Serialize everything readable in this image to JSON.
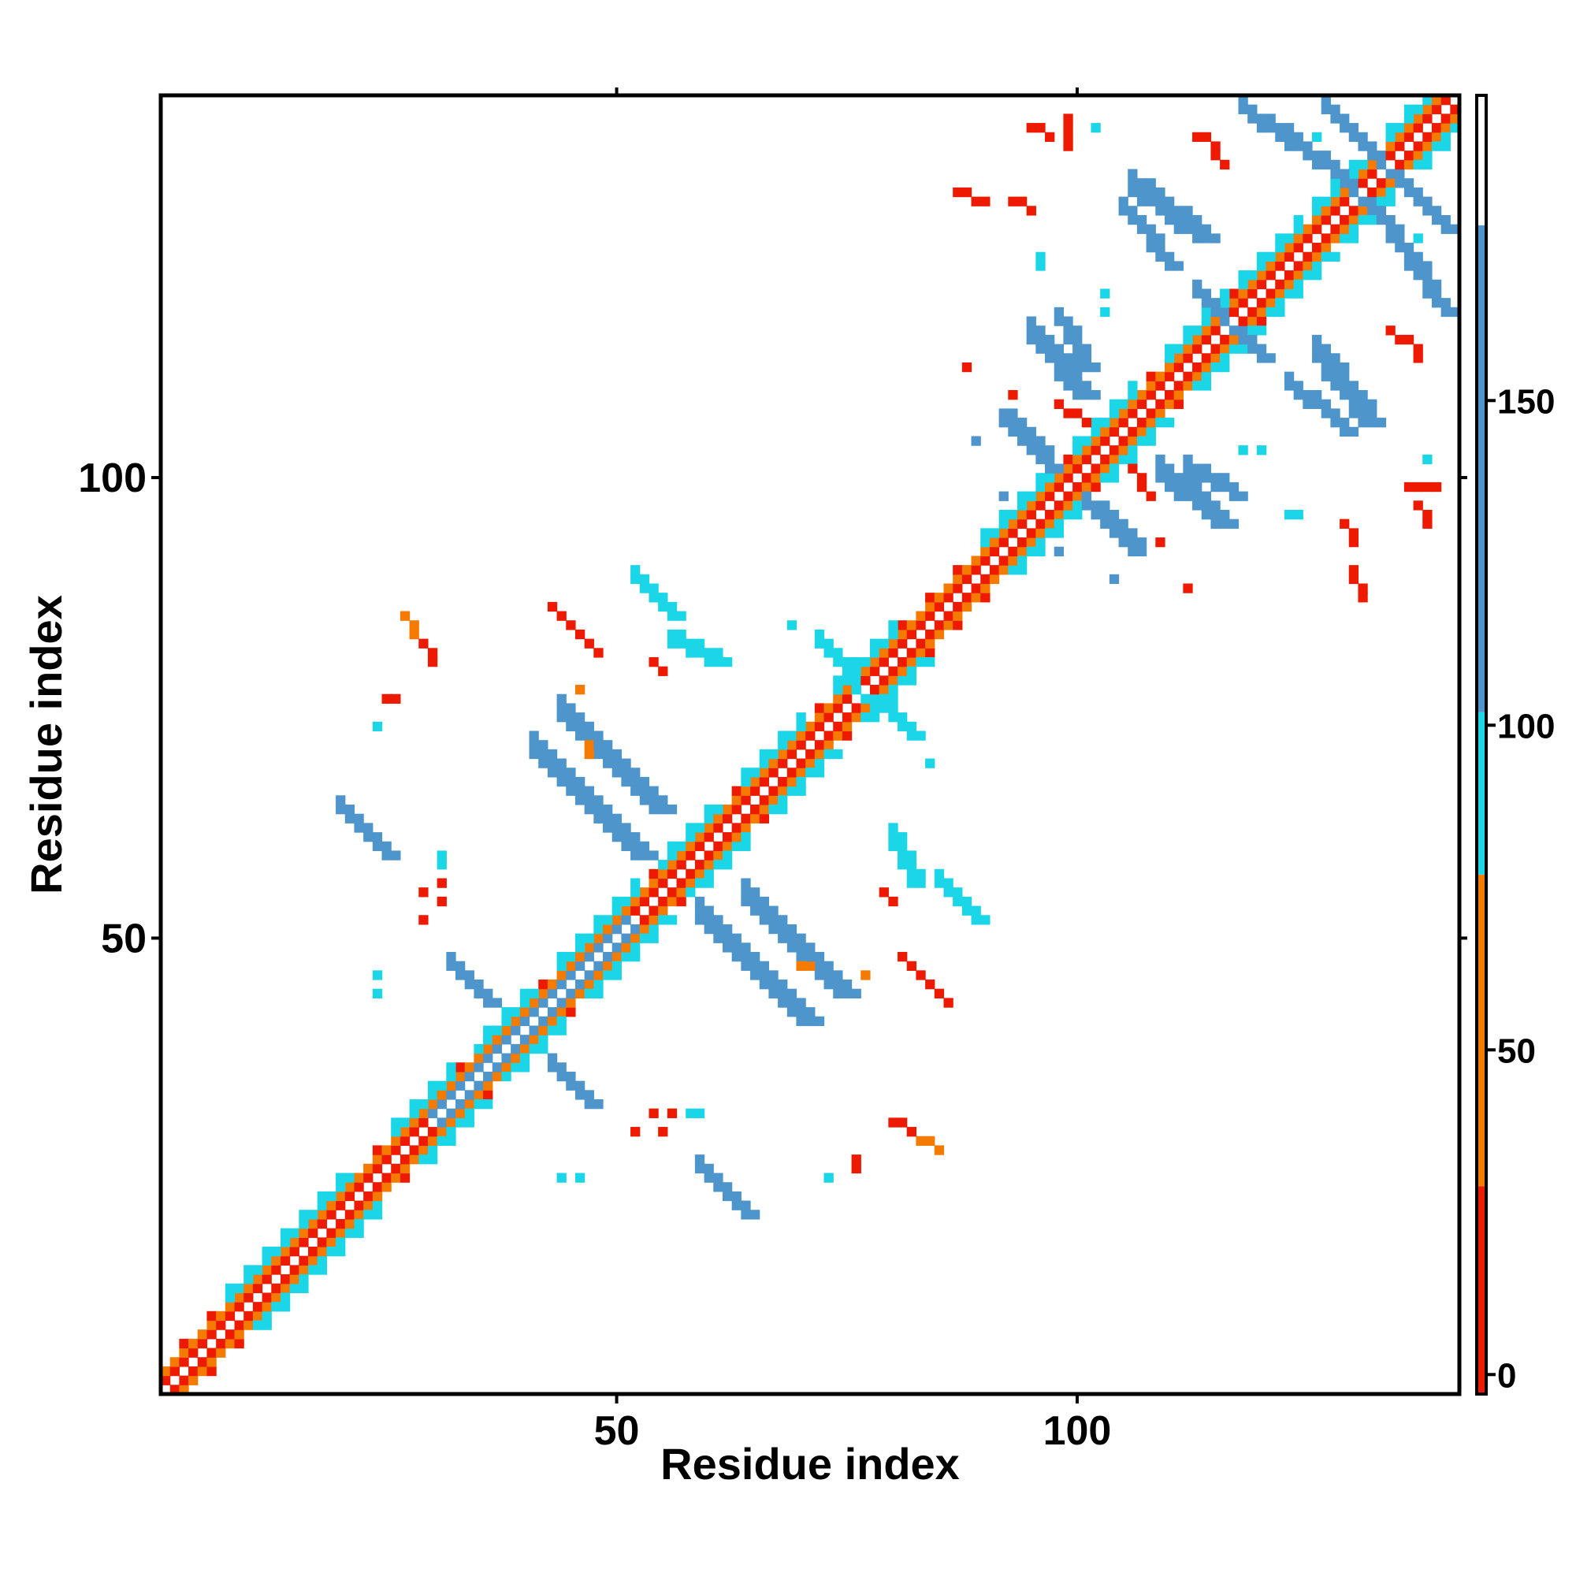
{
  "chart_data": {
    "type": "heatmap",
    "title": "",
    "xlabel": "Residue index",
    "ylabel": "Residue index",
    "xlim": [
      1,
      141
    ],
    "ylim": [
      1,
      141
    ],
    "x_ticks": [
      50,
      100
    ],
    "y_ticks": [
      50,
      100
    ],
    "grid": false,
    "colorbar": {
      "ticks": [
        0,
        50,
        100,
        150
      ],
      "range": [
        -3,
        197
      ],
      "segments": [
        {
          "from": -3,
          "to": 29,
          "color": "#ee1a00"
        },
        {
          "from": 29,
          "to": 77,
          "color": "#f57a00"
        },
        {
          "from": 77,
          "to": 102,
          "color": "#1ad6e6"
        },
        {
          "from": 102,
          "to": 177,
          "color": "#4e95cc"
        },
        {
          "from": 177,
          "to": 197,
          "color": "#ffffff"
        }
      ]
    },
    "palette": {
      "red": "#ee1a00",
      "orange": "#f57a00",
      "cyan": "#1ad6e6",
      "blue": "#4e95cc"
    },
    "diagonal": {
      "from": 1,
      "to": 141,
      "near_band": "red",
      "mid_band": "orange"
    },
    "helices": [
      [
        8,
        14
      ],
      [
        15,
        21
      ],
      [
        26,
        32
      ],
      [
        35,
        41
      ],
      [
        44,
        52
      ],
      [
        55,
        61
      ],
      [
        64,
        70
      ],
      [
        74,
        80
      ],
      [
        90,
        97
      ],
      [
        100,
        106
      ],
      [
        110,
        116
      ],
      [
        118,
        124
      ],
      [
        126,
        132
      ],
      [
        134,
        140
      ]
    ],
    "patches": [
      {
        "x1": 30,
        "y1": 30,
        "x2": 51,
        "y2": 51,
        "width": 2,
        "value": 140
      },
      {
        "x1": 59,
        "y1": 25,
        "x2": 64,
        "y2": 20,
        "width": 2,
        "value": 140
      },
      {
        "x1": 59,
        "y1": 52,
        "x2": 70,
        "y2": 41,
        "width": 3,
        "value": 145
      },
      {
        "x1": 85,
        "y1": 56,
        "x2": 89,
        "y2": 52,
        "width": 2,
        "value": 90
      },
      {
        "x1": 81,
        "y1": 48,
        "x2": 86,
        "y2": 43,
        "width": 1,
        "value": 15
      },
      {
        "x1": 83,
        "y1": 28,
        "x2": 85,
        "y2": 27,
        "width": 1,
        "value": 35
      },
      {
        "x1": 44,
        "y1": 74,
        "x2": 54,
        "y2": 64,
        "width": 3,
        "value": 145
      },
      {
        "x1": 32,
        "y1": 47,
        "x2": 36,
        "y2": 43,
        "width": 2,
        "value": 140
      },
      {
        "x1": 56,
        "y1": 82,
        "x2": 61,
        "y2": 80,
        "width": 2,
        "value": 95
      },
      {
        "x1": 54,
        "y1": 80,
        "x2": 55,
        "y2": 79,
        "width": 1,
        "value": 15
      },
      {
        "x1": 29,
        "y1": 82,
        "x2": 30,
        "y2": 80,
        "width": 1,
        "value": 20
      },
      {
        "x1": 25,
        "y1": 76,
        "x2": 26,
        "y2": 76,
        "width": 1,
        "value": 15
      },
      {
        "x1": 76,
        "y1": 77,
        "x2": 82,
        "y2": 72,
        "width": 2,
        "value": 95
      },
      {
        "x1": 92,
        "y1": 106,
        "x2": 97,
        "y2": 101,
        "width": 2,
        "value": 145
      },
      {
        "x1": 98,
        "y1": 108,
        "x2": 101,
        "y2": 106,
        "width": 1,
        "value": 20
      },
      {
        "x1": 112,
        "y1": 101,
        "x2": 117,
        "y2": 98,
        "width": 2,
        "value": 140
      },
      {
        "x1": 103,
        "y1": 96,
        "x2": 106,
        "y2": 93,
        "width": 2,
        "value": 140
      },
      {
        "x1": 95,
        "y1": 115,
        "x2": 100,
        "y2": 109,
        "width": 3,
        "value": 145
      },
      {
        "x1": 106,
        "y1": 131,
        "x2": 113,
        "y2": 126,
        "width": 3,
        "value": 145
      },
      {
        "x1": 87,
        "y1": 131,
        "x2": 90,
        "y2": 130,
        "width": 1,
        "value": 20
      },
      {
        "x1": 95,
        "y1": 138,
        "x2": 97,
        "y2": 137,
        "width": 1,
        "value": 25
      },
      {
        "x1": 118,
        "y1": 140,
        "x2": 123,
        "y2": 136,
        "width": 2,
        "value": 145
      },
      {
        "x1": 123,
        "y1": 137,
        "x2": 130,
        "y2": 131,
        "width": 2,
        "value": 145
      },
      {
        "x1": 134,
        "y1": 133,
        "x2": 140,
        "y2": 127,
        "width": 2,
        "value": 145
      },
      {
        "x1": 123,
        "y1": 110,
        "x2": 129,
        "y2": 105,
        "width": 2,
        "value": 145
      },
      {
        "x1": 113,
        "y1": 120,
        "x2": 117,
        "y2": 116,
        "width": 2,
        "value": 145
      },
      {
        "x1": 115,
        "y1": 135,
        "x2": 116,
        "y2": 134,
        "width": 1,
        "value": 20
      },
      {
        "x1": 136,
        "y1": 115,
        "x2": 137,
        "y2": 113,
        "width": 1,
        "value": 15
      },
      {
        "x1": 136,
        "y1": 99,
        "x2": 139,
        "y2": 99,
        "width": 1,
        "value": 25
      },
      {
        "x1": 129,
        "y1": 95,
        "x2": 130,
        "y2": 93,
        "width": 1,
        "value": 20
      }
    ],
    "spots": [
      {
        "x": 24,
        "y": 73,
        "value": 90
      },
      {
        "x": 24,
        "y": 46,
        "value": 90
      },
      {
        "x": 31,
        "y": 58,
        "value": 90
      },
      {
        "x": 31,
        "y": 56,
        "value": 20
      },
      {
        "x": 31,
        "y": 54,
        "value": 20
      },
      {
        "x": 44,
        "y": 24,
        "value": 90
      },
      {
        "x": 73,
        "y": 24,
        "value": 90
      },
      {
        "x": 59,
        "y": 31,
        "value": 90
      },
      {
        "x": 55,
        "y": 29,
        "value": 20
      },
      {
        "x": 52,
        "y": 29,
        "value": 20
      },
      {
        "x": 70,
        "y": 47,
        "value": 35
      },
      {
        "x": 71,
        "y": 47,
        "value": 35
      },
      {
        "x": 84,
        "y": 69,
        "value": 95
      },
      {
        "x": 46,
        "y": 77,
        "value": 30
      },
      {
        "x": 89,
        "y": 104,
        "value": 150
      },
      {
        "x": 98,
        "y": 92,
        "value": 150
      },
      {
        "x": 120,
        "y": 103,
        "value": 90
      },
      {
        "x": 118,
        "y": 103,
        "value": 90
      },
      {
        "x": 96,
        "y": 124,
        "value": 90
      },
      {
        "x": 96,
        "y": 123,
        "value": 90
      },
      {
        "x": 109,
        "y": 93,
        "value": 20
      },
      {
        "x": 138,
        "y": 102,
        "value": 90
      },
      {
        "x": 88,
        "y": 112,
        "value": 15
      },
      {
        "x": 126,
        "y": 137,
        "value": 90
      }
    ]
  }
}
